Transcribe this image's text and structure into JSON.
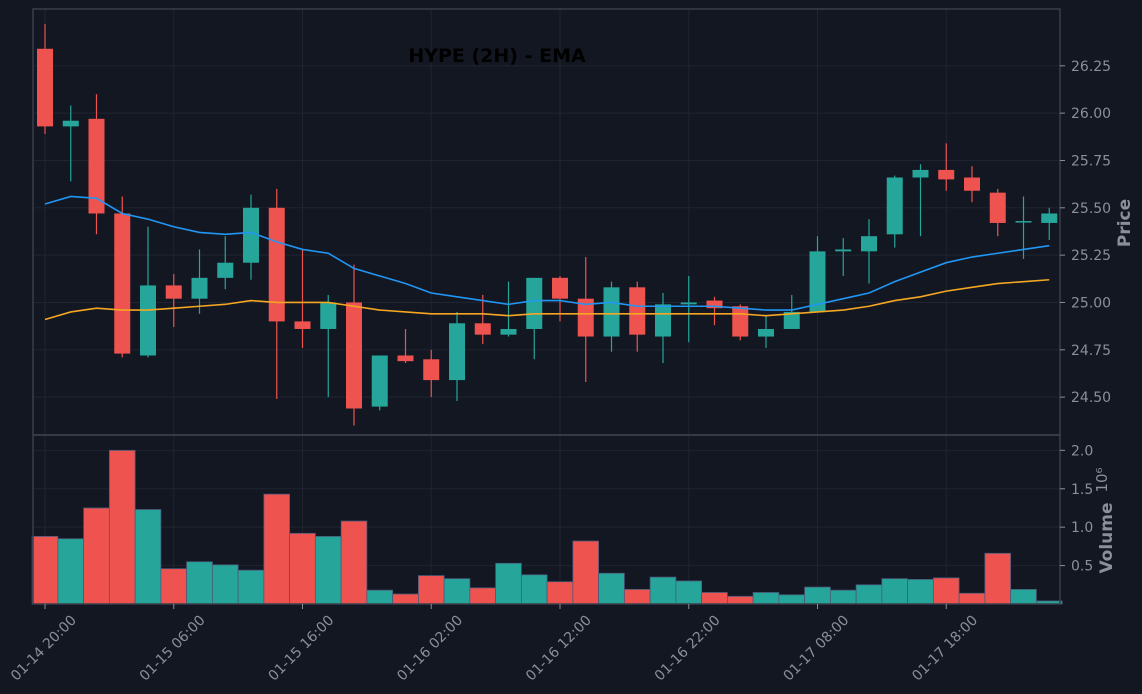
{
  "colors": {
    "background": "#131722",
    "up": "#26a69a",
    "down": "#ef5350",
    "ema_fast": "#2196f3",
    "ema_slow": "#f5a623",
    "grid": "#1f2430",
    "axis": "#3a3f4a",
    "tick": "#8a8f98",
    "title": "#000000"
  },
  "chart_data": {
    "type": "candlestick",
    "title": "HYPE (2H) - EMA",
    "ylabel": "Price",
    "volume_label": "Volume",
    "volume_exponent_label": "10⁶",
    "price_ylim": [
      24.3,
      26.55
    ],
    "volume_ylim": [
      0,
      2.2
    ],
    "price_ticks": [
      "24.50",
      "24.75",
      "25.00",
      "25.25",
      "25.50",
      "25.75",
      "26.00",
      "26.25"
    ],
    "volume_ticks": [
      "0.5",
      "1.0",
      "1.5",
      "2.0"
    ],
    "x_tick_labels": [
      {
        "index": 0,
        "label": "01-14 20:00"
      },
      {
        "index": 5,
        "label": "01-15 06:00"
      },
      {
        "index": 10,
        "label": "01-15 16:00"
      },
      {
        "index": 15,
        "label": "01-16 02:00"
      },
      {
        "index": 20,
        "label": "01-16 12:00"
      },
      {
        "index": 25,
        "label": "01-16 22:00"
      },
      {
        "index": 30,
        "label": "01-17 08:00"
      },
      {
        "index": 35,
        "label": "01-17 18:00"
      }
    ],
    "candles": [
      {
        "o": 26.34,
        "h": 26.47,
        "l": 25.89,
        "c": 25.93,
        "v": 0.88
      },
      {
        "o": 25.93,
        "h": 26.04,
        "l": 25.64,
        "c": 25.96,
        "v": 0.85
      },
      {
        "o": 25.97,
        "h": 26.1,
        "l": 25.36,
        "c": 25.47,
        "v": 1.25
      },
      {
        "o": 25.47,
        "h": 25.56,
        "l": 24.71,
        "c": 24.73,
        "v": 2.0
      },
      {
        "o": 24.72,
        "h": 25.4,
        "l": 24.71,
        "c": 25.09,
        "v": 1.23
      },
      {
        "o": 25.09,
        "h": 25.15,
        "l": 24.87,
        "c": 25.02,
        "v": 0.46
      },
      {
        "o": 25.02,
        "h": 25.28,
        "l": 24.94,
        "c": 25.13,
        "v": 0.55
      },
      {
        "o": 25.13,
        "h": 25.35,
        "l": 25.07,
        "c": 25.21,
        "v": 0.51
      },
      {
        "o": 25.21,
        "h": 25.57,
        "l": 25.12,
        "c": 25.5,
        "v": 0.44
      },
      {
        "o": 25.5,
        "h": 25.6,
        "l": 24.49,
        "c": 24.9,
        "v": 1.43
      },
      {
        "o": 24.9,
        "h": 25.28,
        "l": 24.76,
        "c": 24.86,
        "v": 0.92
      },
      {
        "o": 24.86,
        "h": 25.04,
        "l": 24.5,
        "c": 25.0,
        "v": 0.88
      },
      {
        "o": 25.0,
        "h": 25.2,
        "l": 24.35,
        "c": 24.44,
        "v": 1.08
      },
      {
        "o": 24.45,
        "h": 24.72,
        "l": 24.43,
        "c": 24.72,
        "v": 0.18
      },
      {
        "o": 24.72,
        "h": 24.86,
        "l": 24.68,
        "c": 24.69,
        "v": 0.13
      },
      {
        "o": 24.7,
        "h": 24.75,
        "l": 24.5,
        "c": 24.59,
        "v": 0.37
      },
      {
        "o": 24.59,
        "h": 24.95,
        "l": 24.48,
        "c": 24.89,
        "v": 0.33
      },
      {
        "o": 24.89,
        "h": 25.04,
        "l": 24.78,
        "c": 24.83,
        "v": 0.21
      },
      {
        "o": 24.83,
        "h": 25.11,
        "l": 24.82,
        "c": 24.86,
        "v": 0.53
      },
      {
        "o": 24.86,
        "h": 25.13,
        "l": 24.7,
        "c": 25.13,
        "v": 0.38
      },
      {
        "o": 25.13,
        "h": 25.14,
        "l": 24.9,
        "c": 25.02,
        "v": 0.29
      },
      {
        "o": 25.02,
        "h": 25.24,
        "l": 24.58,
        "c": 24.82,
        "v": 0.82
      },
      {
        "o": 24.82,
        "h": 25.11,
        "l": 24.74,
        "c": 25.08,
        "v": 0.4
      },
      {
        "o": 25.08,
        "h": 25.11,
        "l": 24.74,
        "c": 24.83,
        "v": 0.19
      },
      {
        "o": 24.82,
        "h": 25.05,
        "l": 24.68,
        "c": 24.99,
        "v": 0.35
      },
      {
        "o": 24.99,
        "h": 25.14,
        "l": 24.79,
        "c": 25.0,
        "v": 0.3
      },
      {
        "o": 25.01,
        "h": 25.03,
        "l": 24.88,
        "c": 24.97,
        "v": 0.15
      },
      {
        "o": 24.98,
        "h": 24.99,
        "l": 24.8,
        "c": 24.82,
        "v": 0.1
      },
      {
        "o": 24.82,
        "h": 24.93,
        "l": 24.76,
        "c": 24.86,
        "v": 0.15
      },
      {
        "o": 24.86,
        "h": 25.04,
        "l": 24.86,
        "c": 24.95,
        "v": 0.12
      },
      {
        "o": 24.95,
        "h": 25.35,
        "l": 24.95,
        "c": 25.27,
        "v": 0.22
      },
      {
        "o": 25.27,
        "h": 25.34,
        "l": 25.14,
        "c": 25.28,
        "v": 0.18
      },
      {
        "o": 25.27,
        "h": 25.44,
        "l": 25.1,
        "c": 25.35,
        "v": 0.25
      },
      {
        "o": 25.36,
        "h": 25.67,
        "l": 25.29,
        "c": 25.66,
        "v": 0.33
      },
      {
        "o": 25.66,
        "h": 25.73,
        "l": 25.35,
        "c": 25.7,
        "v": 0.32
      },
      {
        "o": 25.7,
        "h": 25.84,
        "l": 25.59,
        "c": 25.65,
        "v": 0.34
      },
      {
        "o": 25.66,
        "h": 25.72,
        "l": 25.53,
        "c": 25.59,
        "v": 0.14
      },
      {
        "o": 25.58,
        "h": 25.6,
        "l": 25.35,
        "c": 25.42,
        "v": 0.66
      },
      {
        "o": 25.43,
        "h": 25.56,
        "l": 25.23,
        "c": 25.43,
        "v": 0.19
      },
      {
        "o": 25.42,
        "h": 25.5,
        "l": 25.33,
        "c": 25.47,
        "v": 0.04
      }
    ],
    "series": [
      {
        "type": "line",
        "color_key": "ema_fast",
        "values": [
          25.52,
          25.56,
          25.55,
          25.47,
          25.44,
          25.4,
          25.37,
          25.36,
          25.37,
          25.32,
          25.28,
          25.26,
          25.18,
          25.14,
          25.1,
          25.05,
          25.03,
          25.01,
          24.99,
          25.01,
          25.01,
          24.99,
          25.0,
          24.98,
          24.98,
          24.98,
          24.98,
          24.97,
          24.96,
          24.96,
          24.99,
          25.02,
          25.05,
          25.11,
          25.16,
          25.21,
          25.24,
          25.26,
          25.28,
          25.3
        ]
      },
      {
        "type": "line",
        "color_key": "ema_slow",
        "values": [
          24.91,
          24.95,
          24.97,
          24.96,
          24.96,
          24.97,
          24.98,
          24.99,
          25.01,
          25.0,
          25.0,
          25.0,
          24.98,
          24.96,
          24.95,
          24.94,
          24.94,
          24.94,
          24.93,
          24.94,
          24.94,
          24.94,
          24.94,
          24.94,
          24.94,
          24.94,
          24.94,
          24.94,
          24.93,
          24.94,
          24.95,
          24.96,
          24.98,
          25.01,
          25.03,
          25.06,
          25.08,
          25.1,
          25.11,
          25.12
        ]
      }
    ]
  }
}
